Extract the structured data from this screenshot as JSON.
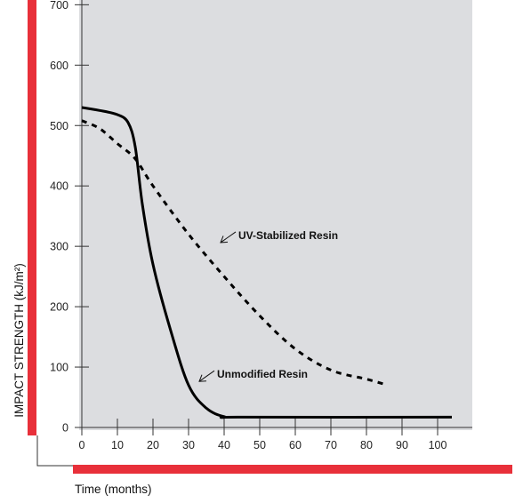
{
  "chart_data": {
    "type": "line",
    "title": "",
    "xlabel": "Time (months)",
    "ylabel": "IMPACT STRENGTH (kJ/m²)",
    "xlim": [
      0,
      110
    ],
    "ylim": [
      0,
      700
    ],
    "xticks": [
      0,
      10,
      20,
      30,
      40,
      50,
      60,
      70,
      80,
      90,
      100
    ],
    "yticks": [
      0,
      100,
      200,
      300,
      400,
      500,
      600,
      700
    ],
    "grid": false,
    "legend": "none",
    "series": [
      {
        "name": "UV-Stabilized Resin",
        "style": "dashed",
        "x": [
          0,
          5,
          10,
          15,
          20,
          30,
          40,
          50,
          60,
          70,
          80,
          86
        ],
        "y": [
          508,
          495,
          470,
          445,
          400,
          320,
          250,
          185,
          130,
          95,
          80,
          70
        ]
      },
      {
        "name": "Unmodified Resin",
        "style": "solid",
        "x": [
          0,
          5,
          10,
          13,
          15,
          17,
          20,
          25,
          30,
          35,
          40,
          45,
          104
        ],
        "y": [
          530,
          525,
          518,
          505,
          465,
          370,
          270,
          160,
          70,
          32,
          18,
          17,
          17
        ]
      }
    ],
    "annotations": [
      {
        "text": "UV-Stabilized Resin",
        "x": 38,
        "y": 318
      },
      {
        "text": "Unmodified Resin",
        "x": 32,
        "y": 88
      }
    ]
  },
  "colors": {
    "plot_background": "#dcdde0",
    "accent_red": "#e8303a",
    "line": "#000000"
  }
}
